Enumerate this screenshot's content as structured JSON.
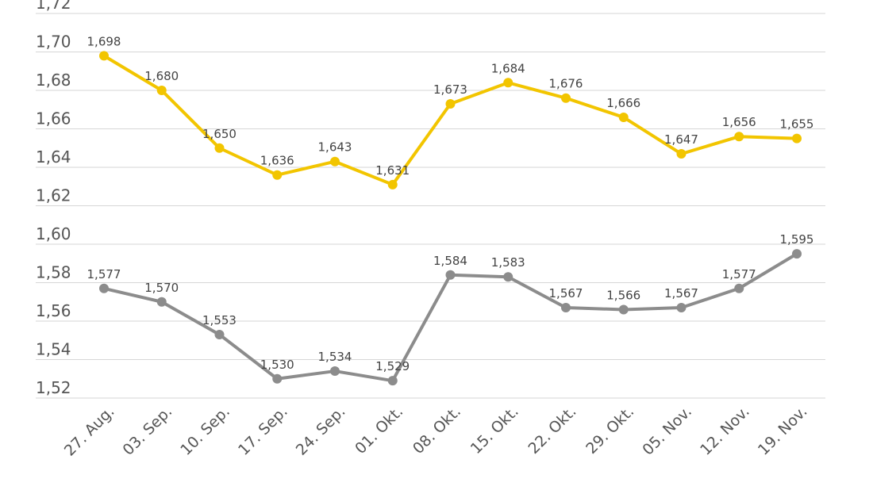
{
  "chart_data": {
    "type": "line",
    "title": "",
    "xlabel": "",
    "ylabel": "",
    "categories": [
      "27. Aug.",
      "03. Sep.",
      "10. Sep.",
      "17. Sep.",
      "24. Sep.",
      "01. Okt.",
      "08. Okt.",
      "15. Okt.",
      "22. Okt.",
      "29. Okt.",
      "05. Nov.",
      "12. Nov.",
      "19. Nov."
    ],
    "ylim": [
      1.51,
      1.73
    ],
    "yticks": [
      "1,52",
      "1,54",
      "1,56",
      "1,58",
      "1,60",
      "1,62",
      "1,64",
      "1,66",
      "1,68",
      "1,70",
      "1,72"
    ],
    "ytick_values": [
      1.52,
      1.54,
      1.56,
      1.58,
      1.6,
      1.62,
      1.64,
      1.66,
      1.68,
      1.7,
      1.72
    ],
    "grid": true,
    "legend": "none",
    "series": [
      {
        "color": "#f2c500",
        "values": [
          1.698,
          1.68,
          1.65,
          1.636,
          1.643,
          1.631,
          1.673,
          1.684,
          1.676,
          1.666,
          1.647,
          1.656,
          1.655
        ],
        "labels": [
          "1,698",
          "1,680",
          "1,650",
          "1,636",
          "1,643",
          "1,631",
          "1,673",
          "1,684",
          "1,676",
          "1,666",
          "1,647",
          "1,656",
          "1,655"
        ]
      },
      {
        "color": "#8c8c8c",
        "values": [
          1.577,
          1.57,
          1.553,
          1.53,
          1.534,
          1.529,
          1.584,
          1.583,
          1.567,
          1.566,
          1.567,
          1.577,
          1.595
        ],
        "labels": [
          "1,577",
          "1,570",
          "1,553",
          "1,530",
          "1,534",
          "1,529",
          "1,584",
          "1,583",
          "1,567",
          "1,566",
          "1,567",
          "1,577",
          "1,595"
        ]
      }
    ]
  }
}
